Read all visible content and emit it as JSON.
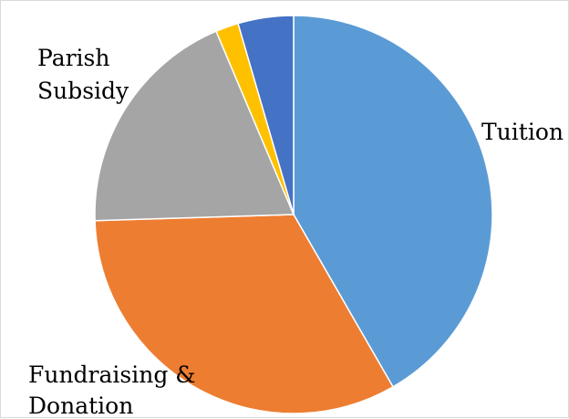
{
  "chart_data": {
    "type": "pie",
    "start_angle_deg": 0,
    "direction": "clockwise",
    "slices": [
      {
        "label": "Tuition",
        "value": 42.5,
        "color": "#5b9bd5"
      },
      {
        "label": "Fundraising & Donation",
        "value": 33.5,
        "color": "#ed7d31"
      },
      {
        "label": "Parish Subsidy",
        "value": 19.5,
        "color": "#a5a5a5"
      },
      {
        "label": "",
        "value": 1.9,
        "color": "#ffc000"
      },
      {
        "label": "",
        "value": 4.6,
        "color": "#4472c4"
      }
    ],
    "legend": "none",
    "data_labels": "category-name"
  }
}
